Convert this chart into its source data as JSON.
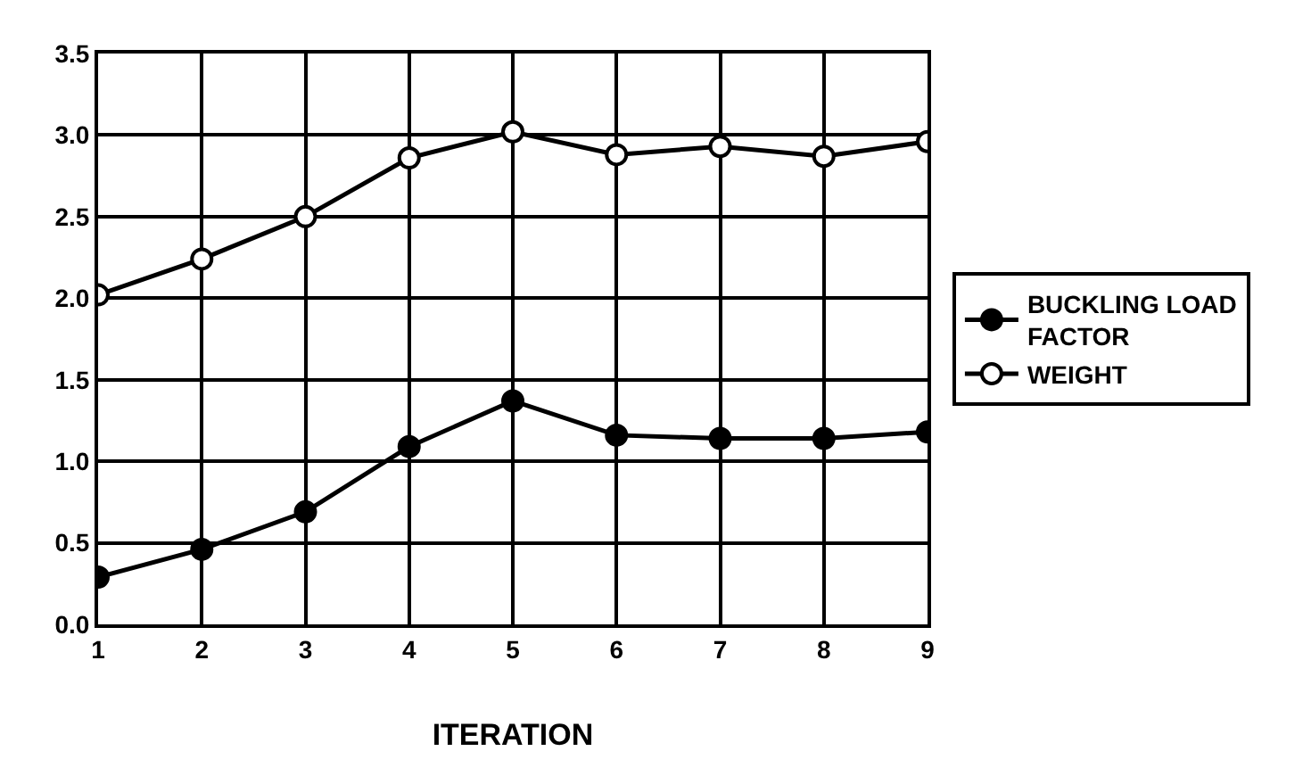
{
  "chart_data": {
    "type": "line",
    "xlabel": "ITERATION",
    "x": [
      1,
      2,
      3,
      4,
      5,
      6,
      7,
      8,
      9
    ],
    "series": [
      {
        "name": "BUCKLING LOAD FACTOR",
        "color": "#000000",
        "marker": "circle",
        "values": [
          0.29,
          0.46,
          0.69,
          1.09,
          1.37,
          1.16,
          1.14,
          1.14,
          1.18
        ]
      },
      {
        "name": "WEIGHT",
        "color": "#000000",
        "marker": "circle-open",
        "values": [
          2.02,
          2.24,
          2.5,
          2.86,
          3.02,
          2.88,
          2.93,
          2.87,
          2.96
        ]
      }
    ],
    "xlim": [
      1,
      9
    ],
    "xticks": [
      1,
      2,
      3,
      4,
      5,
      6,
      7,
      8,
      9
    ],
    "ylim": [
      0,
      3.5
    ],
    "yticks": [
      {
        "value": 0,
        "label": "0.0"
      },
      0.5,
      {
        "value": 1,
        "label": "1.0"
      },
      1.5,
      {
        "value": 2,
        "label": "2.0"
      },
      2.5,
      {
        "value": 3,
        "label": "3.0"
      },
      3.5
    ],
    "grid": true,
    "legend": "right",
    "line_style": "solid"
  }
}
